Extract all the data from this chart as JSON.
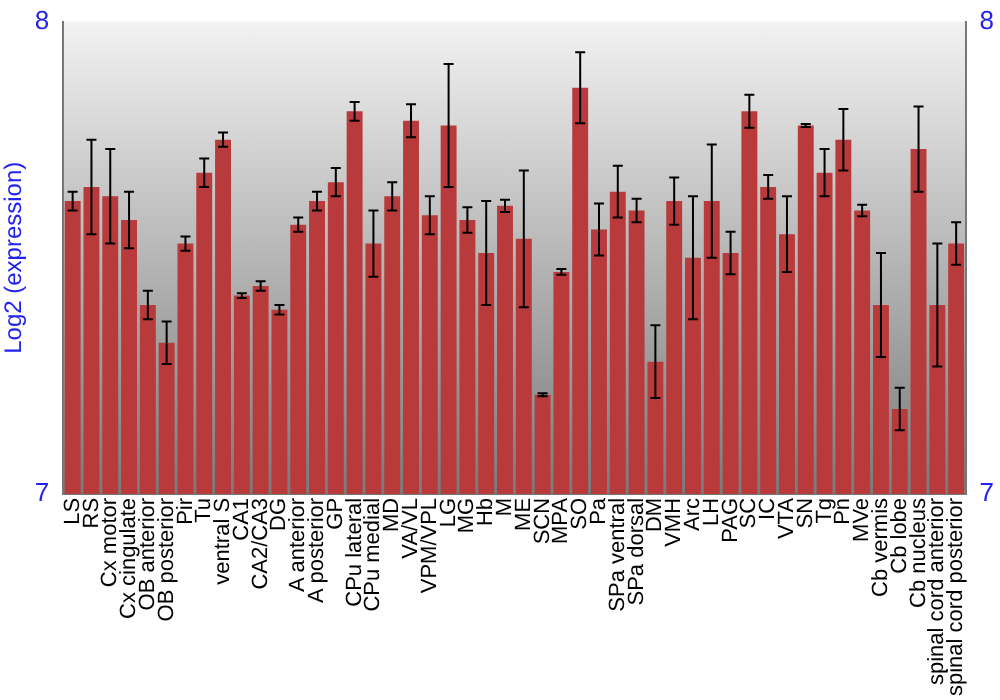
{
  "chart_data": {
    "type": "bar",
    "ylabel": "Log2 (expression)",
    "categories": [
      "LS",
      "RS",
      "Cx motor",
      "Cx cingulate",
      "OB anterior",
      "OB posterior",
      "Pir",
      "Tu",
      "ventral S",
      "CA1",
      "CA2/CA3",
      "DG",
      "A anterior",
      "A posterior",
      "GP",
      "CPu lateral",
      "CPu medial",
      "MD",
      "VA/VL",
      "VPM/VPL",
      "LG",
      "MG",
      "Hb",
      "M",
      "ME",
      "SCN",
      "MPA",
      "SO",
      "Pa",
      "SPa ventral",
      "SPa dorsal",
      "DM",
      "VMH",
      "Arc",
      "LH",
      "PAG",
      "SC",
      "IC",
      "VTA",
      "SN",
      "Tg",
      "Pn",
      "MVe",
      "Cb vermis",
      "Cb lobe",
      "Cb nucleus",
      "spinal cord anterior",
      "spinal cord posterior"
    ],
    "values": [
      7.62,
      7.65,
      7.63,
      7.58,
      7.4,
      7.32,
      7.53,
      7.68,
      7.75,
      7.42,
      7.44,
      7.39,
      7.57,
      7.62,
      7.66,
      7.81,
      7.53,
      7.63,
      7.79,
      7.59,
      7.78,
      7.58,
      7.51,
      7.61,
      7.54,
      7.21,
      7.47,
      7.86,
      7.56,
      7.64,
      7.6,
      7.28,
      7.62,
      7.5,
      7.62,
      7.51,
      7.81,
      7.65,
      7.55,
      7.78,
      7.68,
      7.75,
      7.6,
      7.4,
      7.18,
      7.73,
      7.4,
      7.53
    ],
    "errors": [
      0.02,
      0.1,
      0.1,
      0.06,
      0.03,
      0.045,
      0.015,
      0.03,
      0.015,
      0.005,
      0.01,
      0.01,
      0.015,
      0.02,
      0.03,
      0.02,
      0.07,
      0.03,
      0.035,
      0.04,
      0.13,
      0.027,
      0.11,
      0.013,
      0.145,
      0.003,
      0.006,
      0.075,
      0.055,
      0.055,
      0.025,
      0.077,
      0.05,
      0.13,
      0.12,
      0.045,
      0.035,
      0.025,
      0.08,
      0.003,
      0.05,
      0.065,
      0.012,
      0.11,
      0.045,
      0.09,
      0.13,
      0.045
    ],
    "color": "#b83a3a",
    "ylim": [
      7,
      8
    ],
    "yticks": [
      7,
      8
    ],
    "y2lim": [
      7,
      8
    ],
    "y2ticks": [
      7,
      8
    ],
    "grid": false,
    "legend": false
  }
}
